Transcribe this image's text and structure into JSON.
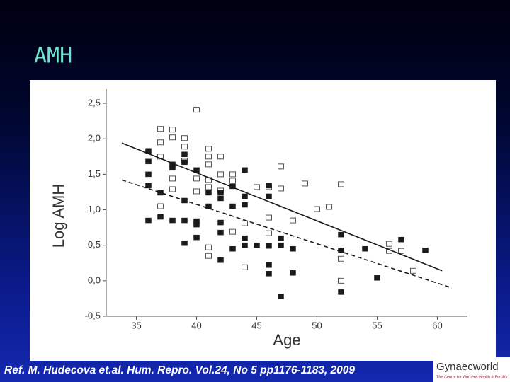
{
  "slide": {
    "title": "AMH",
    "reference": "Ref. M. Hudecova et.al. Hum. Repro. Vol.24, No 5 pp1176-1183, 2009",
    "logo": {
      "name": "Gynaecworld",
      "tagline": "The Centre for Womens Health & Fertility"
    }
  },
  "chart_data": {
    "type": "scatter",
    "x_label": "Age",
    "y_label": "Log AMH",
    "xlim": [
      32.5,
      62.5
    ],
    "ylim": [
      -0.5,
      2.7
    ],
    "xticks": [
      35,
      40,
      45,
      50,
      55,
      60
    ],
    "yticks": [
      {
        "value": -0.5,
        "label": "-0,5"
      },
      {
        "value": 0,
        "label": "0,0"
      },
      {
        "value": 0.5,
        "label": "0,5"
      },
      {
        "value": 1,
        "label": "1,0"
      },
      {
        "value": 1.5,
        "label": "1,5"
      },
      {
        "value": 2,
        "label": "2,0"
      },
      {
        "value": 2.5,
        "label": "2,5"
      }
    ],
    "series": [
      {
        "marker": "open-square",
        "color": "#555555",
        "x": [
          40,
          37,
          38,
          38,
          39,
          37,
          39,
          41,
          37,
          41,
          42,
          39,
          41,
          47,
          42,
          43,
          38,
          40,
          41,
          43,
          49,
          52,
          41,
          45,
          46,
          47,
          38,
          42,
          40,
          51,
          50,
          37,
          46,
          48,
          44,
          43,
          46,
          56,
          57,
          56,
          41,
          41,
          52,
          58,
          44,
          52
        ],
        "values": [
          2.41,
          2.14,
          2.13,
          2.02,
          2.01,
          1.95,
          1.89,
          1.86,
          1.75,
          1.75,
          1.75,
          1.69,
          1.64,
          1.61,
          1.5,
          1.5,
          1.44,
          1.44,
          1.42,
          1.41,
          1.37,
          1.36,
          1.32,
          1.32,
          1.32,
          1.3,
          1.29,
          1.27,
          1.26,
          1.04,
          1.01,
          1.05,
          0.89,
          0.85,
          0.81,
          0.69,
          0.67,
          0.52,
          0.42,
          0.42,
          0.47,
          0.35,
          0.31,
          0.14,
          0.19,
          0
        ]
      },
      {
        "marker": "filled-square",
        "color": "#1a1a1a",
        "x": [
          36,
          36,
          38,
          39,
          39,
          38,
          44,
          36,
          40,
          36,
          37,
          43,
          46,
          41,
          42,
          42,
          44,
          39,
          46,
          43,
          44,
          41,
          37,
          36,
          38,
          39,
          40,
          40,
          42,
          42,
          40,
          44,
          47,
          44,
          45,
          46,
          47,
          48,
          52,
          57,
          39,
          43,
          52,
          54,
          59,
          42,
          46,
          46,
          48,
          55,
          52,
          47
        ],
        "values": [
          1.83,
          1.68,
          1.64,
          1.78,
          1.67,
          1.59,
          1.56,
          1.5,
          1.56,
          1.34,
          1.24,
          1.33,
          1.34,
          1.24,
          1.24,
          1.16,
          1.19,
          1.13,
          1.19,
          1.05,
          1.07,
          1.05,
          0.9,
          0.85,
          0.85,
          0.85,
          0.84,
          0.79,
          0.82,
          0.68,
          0.61,
          0.6,
          0.6,
          0.5,
          0.5,
          0.49,
          0.5,
          0.45,
          0.65,
          0.58,
          0.53,
          0.45,
          0.43,
          0.45,
          0.43,
          0.29,
          0.22,
          0.1,
          0.11,
          0.04,
          -0.16,
          -0.22
        ]
      },
      {
        "line_style": "solid",
        "color": "#1a1a1a",
        "x": [
          33.8,
          60.4
        ],
        "values": [
          1.94,
          0.14
        ]
      },
      {
        "line_style": "dashed",
        "color": "#1a1a1a",
        "x": [
          33.8,
          61.2
        ],
        "values": [
          1.42,
          -0.1
        ]
      }
    ]
  }
}
